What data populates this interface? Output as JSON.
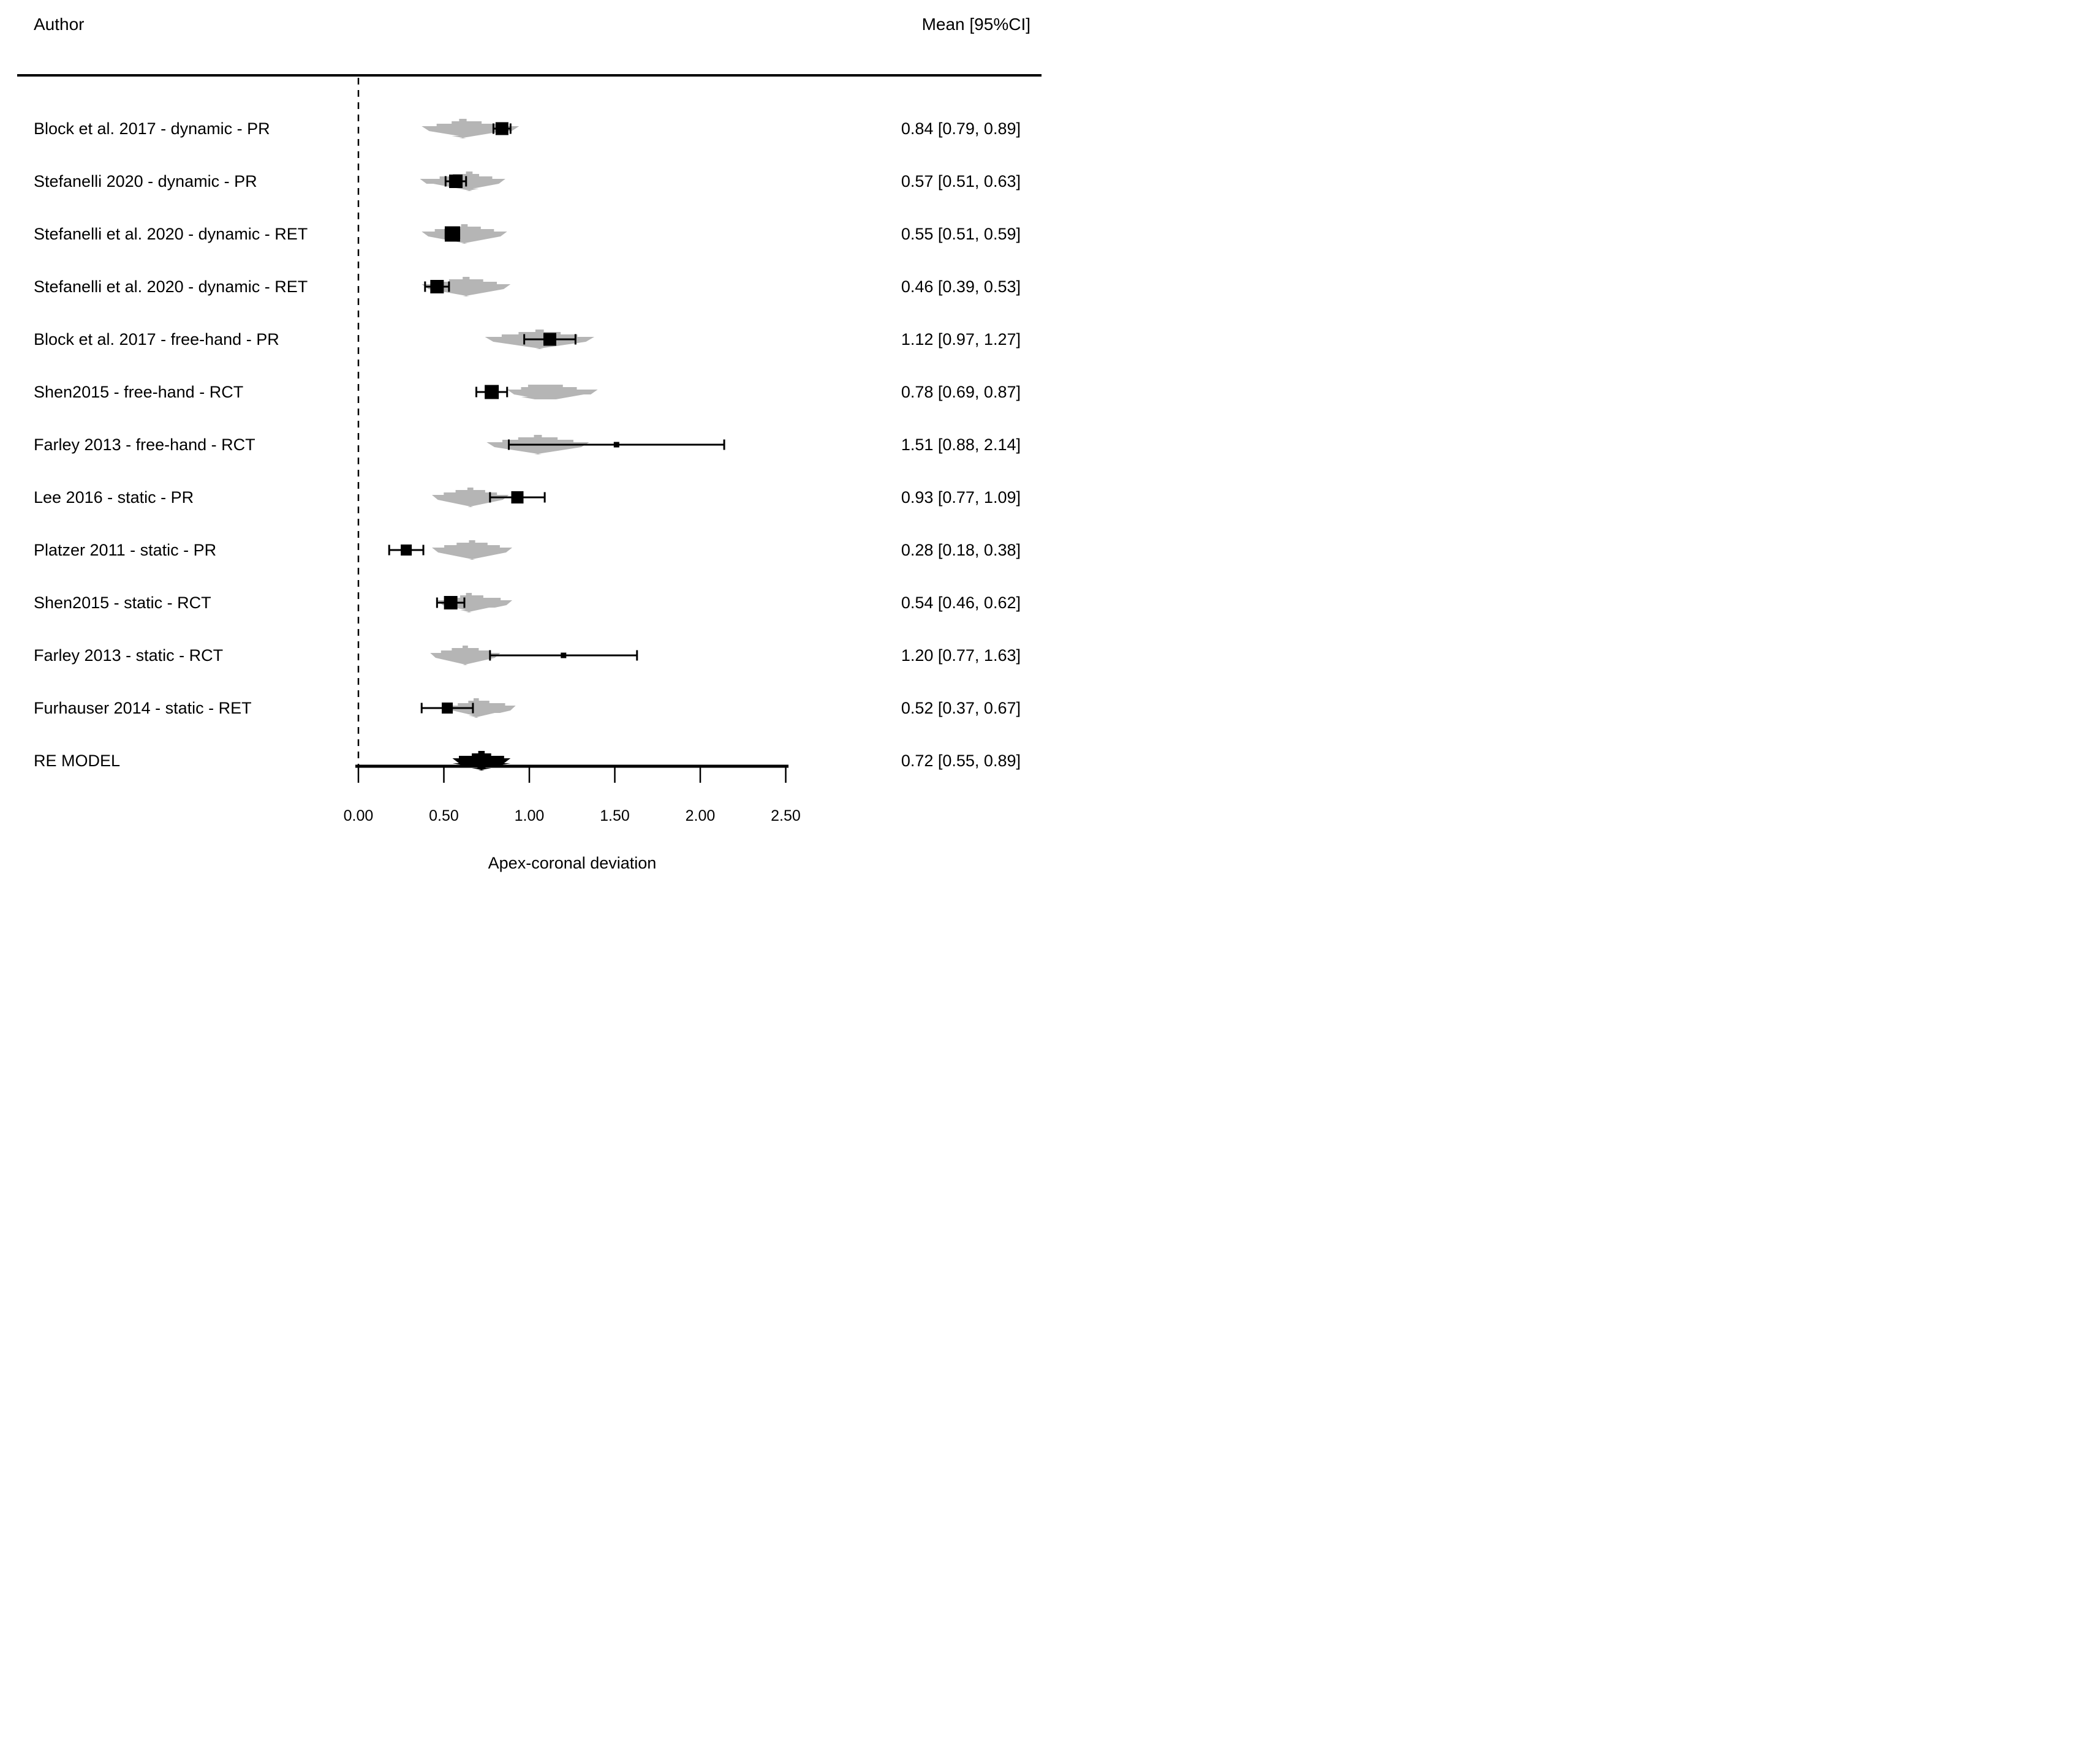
{
  "header": {
    "author_label": "Author",
    "mean_ci_label": "Mean [95%CI]"
  },
  "chart_data": {
    "type": "forest",
    "xlabel": "Apex-coronal deviation",
    "axis": {
      "tick_values": [
        0,
        0.5,
        1,
        1.5,
        2,
        2.5
      ],
      "tick_labels": [
        "0.00",
        "0.50",
        "1.00",
        "1.50",
        "2.00",
        "2.50"
      ],
      "range": [
        0,
        2.5
      ]
    },
    "zero_line": 0,
    "rows": [
      {
        "label": "Block et al. 2017 - dynamic - PR",
        "mean": 0.84,
        "ci_low": 0.79,
        "ci_high": 0.89,
        "annotation": "0.84 [0.79, 0.89]",
        "marker_size": 21,
        "density": {
          "left": 0.37,
          "peak": 0.62,
          "right": 0.94
        }
      },
      {
        "label": "Stefanelli 2020 - dynamic - PR",
        "mean": 0.57,
        "ci_low": 0.51,
        "ci_high": 0.63,
        "annotation": "0.57 [0.51, 0.63]",
        "marker_size": 22,
        "density": {
          "left": 0.36,
          "peak": 0.64,
          "right": 0.86
        }
      },
      {
        "label": "Stefanelli et al. 2020 - dynamic - RET",
        "mean": 0.55,
        "ci_low": 0.51,
        "ci_high": 0.59,
        "annotation": "0.55 [0.51, 0.59]",
        "marker_size": 25,
        "density": {
          "left": 0.37,
          "peak": 0.63,
          "right": 0.87
        }
      },
      {
        "label": "Stefanelli et al. 2020 - dynamic - RET",
        "mean": 0.46,
        "ci_low": 0.39,
        "ci_high": 0.53,
        "annotation": "0.46 [0.39, 0.53]",
        "marker_size": 22,
        "density": {
          "left": 0.37,
          "peak": 0.64,
          "right": 0.89
        }
      },
      {
        "label": "Block et al. 2017 - free-hand - PR",
        "mean": 1.12,
        "ci_low": 0.97,
        "ci_high": 1.27,
        "annotation": "1.12 [0.97, 1.27]",
        "marker_size": 21,
        "density": {
          "left": 0.74,
          "peak": 1.05,
          "right": 1.38
        }
      },
      {
        "label": "Shen2015 - free-hand - RCT",
        "mean": 0.78,
        "ci_low": 0.69,
        "ci_high": 0.87,
        "annotation": "0.78 [0.69, 0.87]",
        "marker_size": 23,
        "density": {
          "left": 0.87,
          "peak": 1.07,
          "right": 1.4
        }
      },
      {
        "label": "Farley 2013 - free-hand - RCT",
        "mean": 1.51,
        "ci_low": 0.88,
        "ci_high": 2.14,
        "annotation": "1.51 [0.88, 2.14]",
        "marker_size": 9,
        "density": {
          "left": 0.75,
          "peak": 1.04,
          "right": 1.35
        }
      },
      {
        "label": "Lee 2016 - static - PR",
        "mean": 0.93,
        "ci_low": 0.77,
        "ci_high": 1.09,
        "annotation": "0.93 [0.77, 1.09]",
        "marker_size": 20,
        "density": {
          "left": 0.43,
          "peak": 0.65,
          "right": 0.88
        }
      },
      {
        "label": "Platzer 2011 - static - PR",
        "mean": 0.28,
        "ci_low": 0.18,
        "ci_high": 0.38,
        "annotation": "0.28 [0.18, 0.38]",
        "marker_size": 18,
        "density": {
          "left": 0.43,
          "peak": 0.66,
          "right": 0.9
        }
      },
      {
        "label": "Shen2015 - static - RCT",
        "mean": 0.54,
        "ci_low": 0.46,
        "ci_high": 0.62,
        "annotation": "0.54 [0.46, 0.62]",
        "marker_size": 22,
        "density": {
          "left": 0.46,
          "peak": 0.66,
          "right": 0.9
        }
      },
      {
        "label": "Farley 2013 - static - RCT",
        "mean": 1.2,
        "ci_low": 0.77,
        "ci_high": 1.63,
        "annotation": "1.20 [0.77, 1.63]",
        "marker_size": 9,
        "density": {
          "left": 0.42,
          "peak": 0.63,
          "right": 0.83
        }
      },
      {
        "label": "Furhauser 2014 - static - RET",
        "mean": 0.52,
        "ci_low": 0.37,
        "ci_high": 0.67,
        "annotation": "0.52 [0.37, 0.67]",
        "marker_size": 18,
        "density": {
          "left": 0.52,
          "peak": 0.7,
          "right": 0.92
        }
      }
    ],
    "summary": {
      "label": "RE MODEL",
      "mean": 0.72,
      "ci_low": 0.55,
      "ci_high": 0.89,
      "annotation": "0.72 [0.55, 0.89]"
    }
  },
  "colors": {
    "text": "#000000",
    "axis": "#000000",
    "marker": "#000000",
    "density_fill": "#b5b5b5",
    "summary_fill": "#000000",
    "background": "#ffffff"
  }
}
